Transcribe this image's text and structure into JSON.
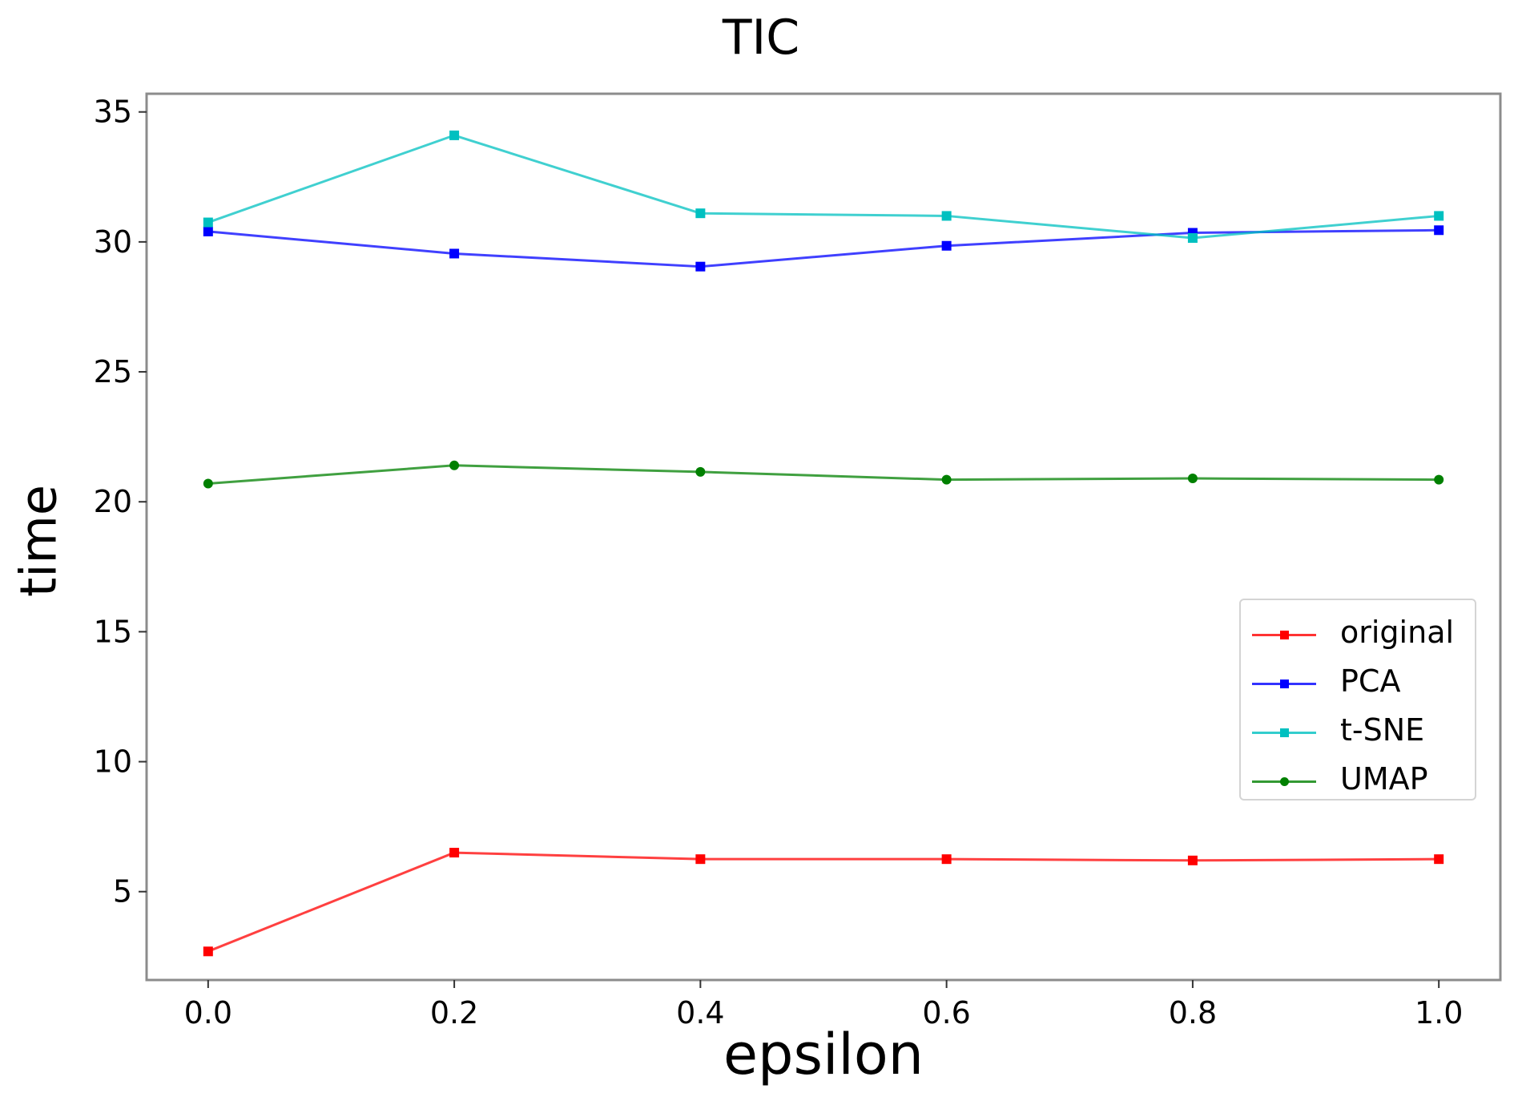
{
  "chart_data": {
    "type": "line",
    "title": "TIC",
    "xlabel": "epsilon",
    "ylabel": "time",
    "x": [
      0.0,
      0.2,
      0.4,
      0.6,
      0.8,
      1.0
    ],
    "xticks": [
      "0.0",
      "0.2",
      "0.4",
      "0.6",
      "0.8",
      "1.0"
    ],
    "yticks": [
      "5",
      "10",
      "15",
      "20",
      "25",
      "30",
      "35"
    ],
    "xlim": [
      -0.05,
      1.05
    ],
    "ylim": [
      1.6,
      35.7
    ],
    "grid": false,
    "legend_position": "center-right",
    "series": [
      {
        "name": "original",
        "color": "#ff0000",
        "marker": "square",
        "values": [
          2.7,
          6.5,
          6.25,
          6.25,
          6.2,
          6.25
        ]
      },
      {
        "name": "PCA",
        "color": "#0000ff",
        "marker": "square",
        "values": [
          30.4,
          29.55,
          29.05,
          29.85,
          30.35,
          30.45
        ]
      },
      {
        "name": "t-SNE",
        "color": "#00c0c0",
        "marker": "square",
        "values": [
          30.75,
          34.1,
          31.1,
          31.0,
          30.15,
          31.0
        ]
      },
      {
        "name": "UMAP",
        "color": "#008000",
        "marker": "circle",
        "values": [
          20.7,
          21.4,
          21.15,
          20.85,
          20.9,
          20.85
        ]
      }
    ]
  }
}
